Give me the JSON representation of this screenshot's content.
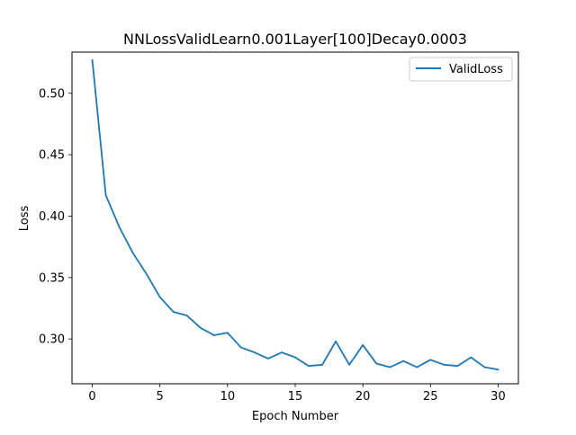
{
  "chart_data": {
    "type": "line",
    "title": "NNLossValidLearn0.001Layer[100]Decay0.0003",
    "xlabel": "Epoch Number",
    "ylabel": "Loss",
    "xlim": [
      -1.5,
      31.5
    ],
    "ylim": [
      0.2635,
      0.5335
    ],
    "xticks": [
      0,
      5,
      10,
      15,
      20,
      25,
      30
    ],
    "xtick_labels": [
      "0",
      "5",
      "10",
      "15",
      "20",
      "25",
      "30"
    ],
    "yticks": [
      0.3,
      0.35,
      0.4,
      0.45,
      0.5
    ],
    "ytick_labels": [
      "0.30",
      "0.35",
      "0.40",
      "0.45",
      "0.50"
    ],
    "grid": false,
    "legend_position": "upper right",
    "series": [
      {
        "name": "ValidLoss",
        "color": "#1f77b4",
        "x": [
          0,
          1,
          2,
          3,
          4,
          5,
          6,
          7,
          8,
          9,
          10,
          11,
          12,
          13,
          14,
          15,
          16,
          17,
          18,
          19,
          20,
          21,
          22,
          23,
          24,
          25,
          26,
          27,
          28,
          29,
          30
        ],
        "y": [
          0.527,
          0.417,
          0.391,
          0.37,
          0.353,
          0.334,
          0.322,
          0.319,
          0.309,
          0.303,
          0.305,
          0.293,
          0.289,
          0.284,
          0.289,
          0.285,
          0.278,
          0.279,
          0.298,
          0.279,
          0.295,
          0.28,
          0.277,
          0.282,
          0.277,
          0.283,
          0.279,
          0.278,
          0.285,
          0.277,
          0.275
        ]
      }
    ]
  }
}
